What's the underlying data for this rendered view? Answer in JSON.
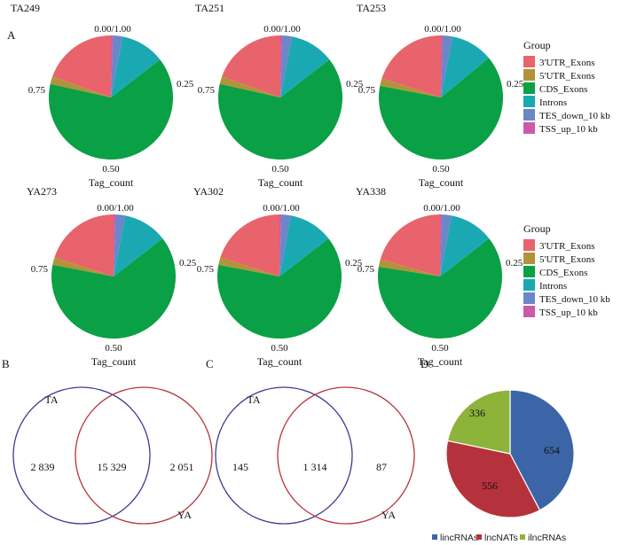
{
  "panels": {
    "A": "A",
    "B": "B",
    "C": "C",
    "D": "D"
  },
  "group_palette": {
    "3'UTR_Exons": "#e8636b",
    "5'UTR_Exons": "#b3933a",
    "CDS_Exons": "#0aa045",
    "Introns": "#1aa9b3",
    "TES_down_10 kb": "#6b86c9",
    "TSS_up_10 kb": "#cc5aab"
  },
  "pie_axis": {
    "ticks": [
      "0.00/1.00",
      "0.25",
      "0.50",
      "0.75"
    ],
    "title": "Tag_count"
  },
  "legend": {
    "title": "Group",
    "items": [
      "3'UTR_Exons",
      "5'UTR_Exons",
      "CDS_Exons",
      "Introns",
      "TES_down_10 kb",
      "TSS_up_10 kb"
    ]
  },
  "chart_data": [
    {
      "type": "pie",
      "title": "TA249",
      "labels": [
        "3'UTR_Exons",
        "5'UTR_Exons",
        "CDS_Exons",
        "Introns",
        "TES_down_10 kb",
        "TSS_up_10 kb"
      ],
      "values": [
        0.195,
        0.02,
        0.64,
        0.115,
        0.025,
        0.005
      ]
    },
    {
      "type": "pie",
      "title": "TA251",
      "labels": [
        "3'UTR_Exons",
        "5'UTR_Exons",
        "CDS_Exons",
        "Introns",
        "TES_down_10 kb",
        "TSS_up_10 kb"
      ],
      "values": [
        0.195,
        0.02,
        0.64,
        0.115,
        0.025,
        0.005
      ]
    },
    {
      "type": "pie",
      "title": "TA253",
      "labels": [
        "3'UTR_Exons",
        "5'UTR_Exons",
        "CDS_Exons",
        "Introns",
        "TES_down_10 kb",
        "TSS_up_10 kb"
      ],
      "values": [
        0.2,
        0.02,
        0.64,
        0.11,
        0.025,
        0.005
      ]
    },
    {
      "type": "pie",
      "title": "YA273",
      "labels": [
        "3'UTR_Exons",
        "5'UTR_Exons",
        "CDS_Exons",
        "Introns",
        "TES_down_10 kb",
        "TSS_up_10 kb"
      ],
      "values": [
        0.2,
        0.02,
        0.635,
        0.115,
        0.025,
        0.005
      ]
    },
    {
      "type": "pie",
      "title": "YA302",
      "labels": [
        "3'UTR_Exons",
        "5'UTR_Exons",
        "CDS_Exons",
        "Introns",
        "TES_down_10 kb",
        "TSS_up_10 kb"
      ],
      "values": [
        0.2,
        0.02,
        0.635,
        0.115,
        0.025,
        0.005
      ]
    },
    {
      "type": "pie",
      "title": "YA338",
      "labels": [
        "3'UTR_Exons",
        "5'UTR_Exons",
        "CDS_Exons",
        "Introns",
        "TES_down_10 kb",
        "TSS_up_10 kb"
      ],
      "values": [
        0.205,
        0.02,
        0.63,
        0.115,
        0.025,
        0.005
      ]
    },
    {
      "type": "venn",
      "title": "B",
      "sets": [
        "TA",
        "YA"
      ],
      "only_first": "2 839",
      "intersection": "15 329",
      "only_second": "2 051",
      "colors": [
        "#3b3b8f",
        "#b8323e"
      ]
    },
    {
      "type": "venn",
      "title": "C",
      "sets": [
        "TA",
        "YA"
      ],
      "only_first": "145",
      "intersection": "1 314",
      "only_second": "87",
      "colors": [
        "#3b3b8f",
        "#b8323e"
      ]
    },
    {
      "type": "pie",
      "title": "D",
      "labels": [
        "lincRNAs",
        "lncNATs",
        "ilncRNAs"
      ],
      "values": [
        654,
        556,
        336
      ],
      "colors": [
        "#3b65a6",
        "#b5323c",
        "#8db33b"
      ]
    }
  ]
}
